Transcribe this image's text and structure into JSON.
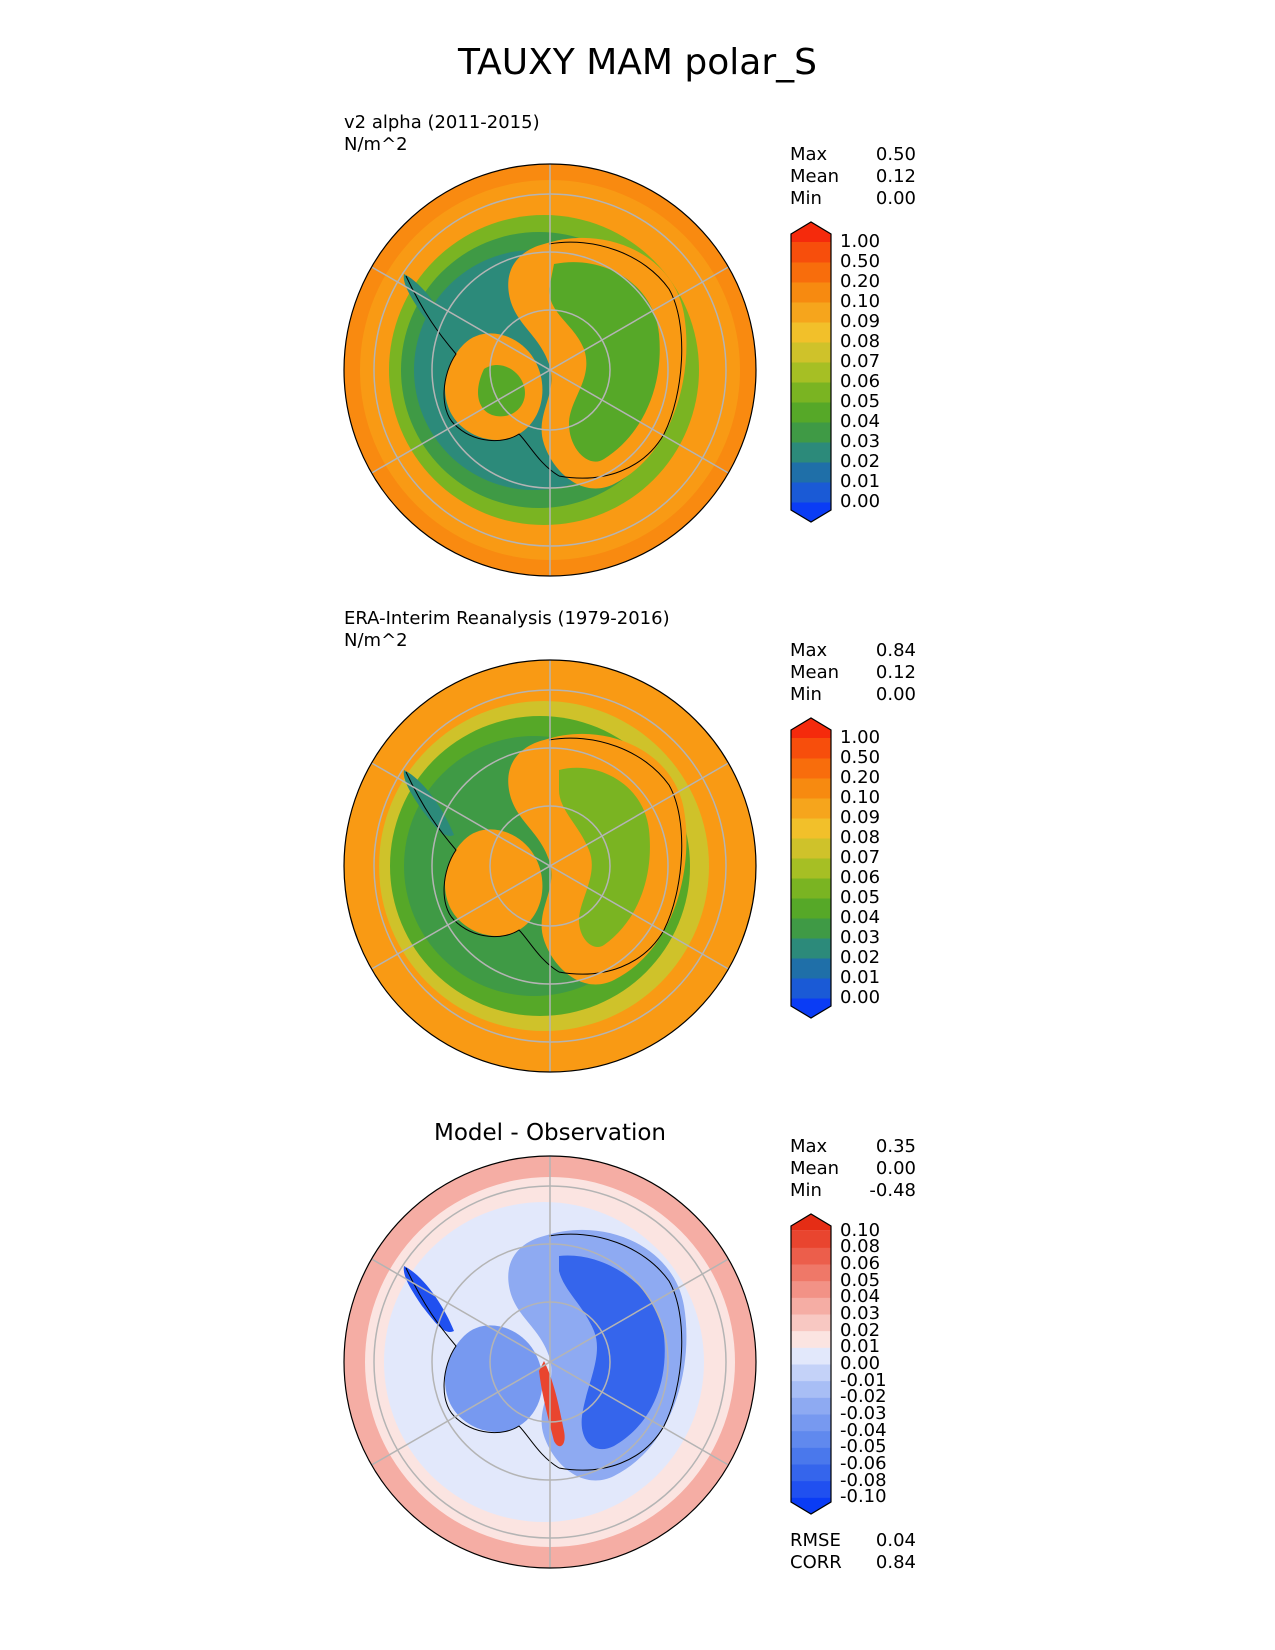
{
  "title": "TAUXY MAM polar_S",
  "panels": [
    {
      "id": "test",
      "title": "v2 alpha (2011-2015)",
      "units": "N/m^2",
      "stats": [
        {
          "label": "Max",
          "value": "0.50"
        },
        {
          "label": "Mean",
          "value": "0.12"
        },
        {
          "label": "Min",
          "value": "0.00"
        }
      ]
    },
    {
      "id": "ref",
      "title": "ERA-Interim Reanalysis (1979-2016)",
      "units": "N/m^2",
      "stats": [
        {
          "label": "Max",
          "value": "0.84"
        },
        {
          "label": "Mean",
          "value": "0.12"
        },
        {
          "label": "Min",
          "value": "0.00"
        }
      ]
    },
    {
      "id": "diff",
      "title": "Model - Observation",
      "stats": [
        {
          "label": "Max",
          "value": "0.35"
        },
        {
          "label": "Mean",
          "value": "0.00"
        },
        {
          "label": "Min",
          "value": "-0.48"
        }
      ],
      "metrics": [
        {
          "label": "RMSE",
          "value": "0.04"
        },
        {
          "label": "CORR",
          "value": "0.84"
        }
      ]
    }
  ],
  "colorbars": {
    "main": {
      "ticks": [
        "1.00",
        "0.50",
        "0.20",
        "0.10",
        "0.09",
        "0.08",
        "0.07",
        "0.06",
        "0.05",
        "0.04",
        "0.03",
        "0.02",
        "0.01",
        "0.00"
      ],
      "colors": [
        "#0a3cf5",
        "#1a5ad6",
        "#1f6fa8",
        "#2c8a7a",
        "#3f9a45",
        "#56a828",
        "#7ab422",
        "#a6bf24",
        "#cfc22a",
        "#f2c02a",
        "#f6a51c",
        "#f78a10",
        "#f86d0c",
        "#f74e0c",
        "#f52a0c"
      ]
    },
    "diff": {
      "ticks": [
        "0.10",
        "0.08",
        "0.06",
        "0.05",
        "0.04",
        "0.03",
        "0.02",
        "0.01",
        "0.00",
        "-0.01",
        "-0.02",
        "-0.03",
        "-0.04",
        "-0.05",
        "-0.06",
        "-0.08",
        "-0.10"
      ],
      "colors": [
        "#0a3cf5",
        "#2050f0",
        "#3565ec",
        "#4a78ec",
        "#6089ee",
        "#7799f0",
        "#8eaaf2",
        "#a8bef5",
        "#c4d2f8",
        "#e2e8fb",
        "#fbe4e1",
        "#f8c8c2",
        "#f5ada4",
        "#f29286",
        "#ef7868",
        "#ec5e4b",
        "#e9452f",
        "#e52d15"
      ]
    }
  },
  "chart_data": [
    {
      "type": "heatmap",
      "projection": "south polar stereographic",
      "title": "v2 alpha (2011-2015)",
      "units": "N/m^2",
      "variable": "TAUXY",
      "season": "MAM",
      "region": "polar_S",
      "levels": [
        0.0,
        0.01,
        0.02,
        0.03,
        0.04,
        0.05,
        0.06,
        0.07,
        0.08,
        0.09,
        0.1,
        0.2,
        0.5,
        1.0
      ],
      "max": 0.5,
      "mean": 0.12,
      "min": 0.0
    },
    {
      "type": "heatmap",
      "projection": "south polar stereographic",
      "title": "ERA-Interim Reanalysis (1979-2016)",
      "units": "N/m^2",
      "levels": [
        0.0,
        0.01,
        0.02,
        0.03,
        0.04,
        0.05,
        0.06,
        0.07,
        0.08,
        0.09,
        0.1,
        0.2,
        0.5,
        1.0
      ],
      "max": 0.84,
      "mean": 0.12,
      "min": 0.0
    },
    {
      "type": "heatmap",
      "projection": "south polar stereographic",
      "title": "Model - Observation",
      "levels": [
        -0.1,
        -0.08,
        -0.06,
        -0.05,
        -0.04,
        -0.03,
        -0.02,
        -0.01,
        0.0,
        0.01,
        0.02,
        0.03,
        0.04,
        0.05,
        0.06,
        0.08,
        0.1
      ],
      "max": 0.35,
      "mean": 0.0,
      "min": -0.48,
      "rmse": 0.04,
      "corr": 0.84
    }
  ]
}
